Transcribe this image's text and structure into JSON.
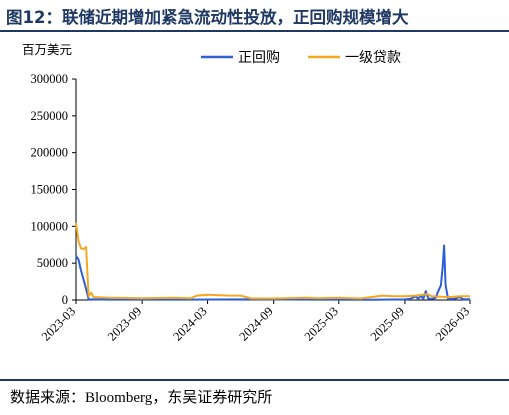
{
  "figure_title": "图12：联储近期增加紧急流动性投放，正回购规模增大",
  "source": "数据来源：Bloomberg，东吴证券研究所",
  "colors": {
    "title": "#1f3864",
    "repo": "#2e5fd6",
    "primary_credit": "#f5a623"
  },
  "chart_data": {
    "type": "line",
    "title": "",
    "ylabel": "百万美元",
    "xlabel": "",
    "ylim": [
      0,
      300000
    ],
    "yticks": [
      0,
      50000,
      100000,
      150000,
      200000,
      250000,
      300000
    ],
    "ytick_labels": [
      "0",
      "50000",
      "100000",
      "150000",
      "200000",
      "250000",
      "300000"
    ],
    "xlim": [
      "2023-03-01",
      "2026-03-01"
    ],
    "xticks": [
      "2023-03",
      "2023-09",
      "2024-03",
      "2024-09",
      "2025-03",
      "2025-09",
      "2026-03"
    ],
    "grid": false,
    "legend": "top-center",
    "series": [
      {
        "name": "正回购",
        "color": "#2e5fd6",
        "points": [
          [
            "2023-03-01",
            60000
          ],
          [
            "2023-03-08",
            55000
          ],
          [
            "2023-03-15",
            40000
          ],
          [
            "2023-03-22",
            28000
          ],
          [
            "2023-03-29",
            15000
          ],
          [
            "2023-04-05",
            1000
          ],
          [
            "2023-06-01",
            500
          ],
          [
            "2024-01-01",
            500
          ],
          [
            "2024-06-01",
            800
          ],
          [
            "2025-01-01",
            500
          ],
          [
            "2025-06-01",
            400
          ],
          [
            "2025-09-01",
            800
          ],
          [
            "2025-09-15",
            1500
          ],
          [
            "2025-10-01",
            5000
          ],
          [
            "2025-10-08",
            1500
          ],
          [
            "2025-10-15",
            6000
          ],
          [
            "2025-10-22",
            1500
          ],
          [
            "2025-10-29",
            12000
          ],
          [
            "2025-11-05",
            2000
          ],
          [
            "2025-11-12",
            1500
          ],
          [
            "2025-11-19",
            2000
          ],
          [
            "2025-11-26",
            3000
          ],
          [
            "2025-12-01",
            10000
          ],
          [
            "2025-12-10",
            20000
          ],
          [
            "2025-12-15",
            45000
          ],
          [
            "2025-12-19",
            74000
          ],
          [
            "2025-12-23",
            20000
          ],
          [
            "2025-12-30",
            1500
          ],
          [
            "2026-01-15",
            1500
          ],
          [
            "2026-02-01",
            4000
          ],
          [
            "2026-02-10",
            1000
          ],
          [
            "2026-03-01",
            1000
          ]
        ]
      },
      {
        "name": "一级贷款",
        "color": "#f5a623",
        "points": [
          [
            "2023-03-01",
            105000
          ],
          [
            "2023-03-08",
            80000
          ],
          [
            "2023-03-15",
            70000
          ],
          [
            "2023-03-22",
            69000
          ],
          [
            "2023-03-29",
            72000
          ],
          [
            "2023-04-05",
            5000
          ],
          [
            "2023-04-12",
            10000
          ],
          [
            "2023-04-19",
            4000
          ],
          [
            "2023-06-01",
            3000
          ],
          [
            "2023-09-01",
            2500
          ],
          [
            "2023-12-01",
            3000
          ],
          [
            "2024-01-15",
            2500
          ],
          [
            "2024-02-01",
            6000
          ],
          [
            "2024-03-01",
            7000
          ],
          [
            "2024-05-01",
            6000
          ],
          [
            "2024-06-01",
            6000
          ],
          [
            "2024-07-01",
            2000
          ],
          [
            "2024-09-01",
            2000
          ],
          [
            "2024-12-01",
            3000
          ],
          [
            "2025-01-01",
            2500
          ],
          [
            "2025-03-01",
            3000
          ],
          [
            "2025-05-01",
            2000
          ],
          [
            "2025-07-01",
            6000
          ],
          [
            "2025-08-01",
            5000
          ],
          [
            "2025-09-01",
            5000
          ],
          [
            "2025-10-01",
            6000
          ],
          [
            "2025-11-01",
            8000
          ],
          [
            "2025-11-15",
            5000
          ],
          [
            "2026-01-01",
            4000
          ],
          [
            "2026-02-01",
            5000
          ],
          [
            "2026-03-01",
            5000
          ]
        ]
      }
    ]
  }
}
